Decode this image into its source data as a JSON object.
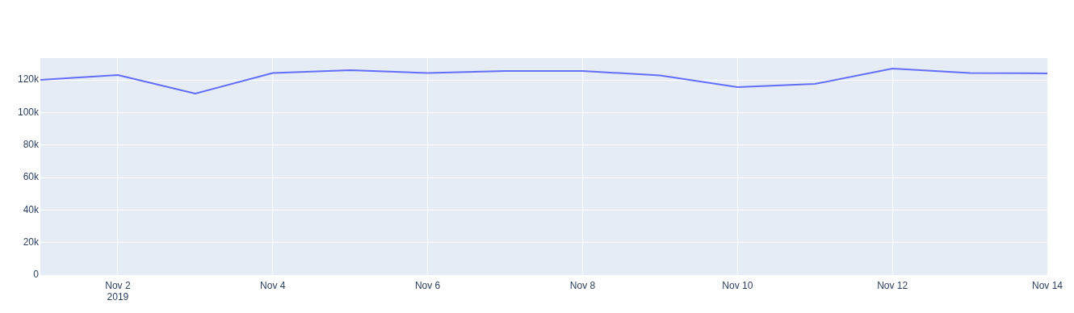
{
  "chart_data": {
    "type": "line",
    "x": [
      "2019-11-01",
      "2019-11-02",
      "2019-11-03",
      "2019-11-04",
      "2019-11-05",
      "2019-11-06",
      "2019-11-07",
      "2019-11-08",
      "2019-11-09",
      "2019-11-10",
      "2019-11-11",
      "2019-11-12",
      "2019-11-13",
      "2019-11-14"
    ],
    "series": [
      {
        "color": "#636efa",
        "values": [
          120000,
          123000,
          111600,
          124200,
          126000,
          124200,
          125500,
          125500,
          122700,
          115500,
          117500,
          127000,
          124200,
          124000
        ]
      }
    ],
    "xlim": [
      "2019-11-01",
      "2019-11-14"
    ],
    "xticks": [
      {
        "value": "2019-11-02",
        "label": "Nov 2\n2019"
      },
      {
        "value": "2019-11-04",
        "label": "Nov 4"
      },
      {
        "value": "2019-11-06",
        "label": "Nov 6"
      },
      {
        "value": "2019-11-08",
        "label": "Nov 8"
      },
      {
        "value": "2019-11-10",
        "label": "Nov 10"
      },
      {
        "value": "2019-11-12",
        "label": "Nov 12"
      },
      {
        "value": "2019-11-14",
        "label": "Nov 14"
      }
    ],
    "ylim": [
      0,
      133400
    ],
    "yticks": [
      {
        "value": 0,
        "label": "0"
      },
      {
        "value": 20000,
        "label": "20k"
      },
      {
        "value": 40000,
        "label": "40k"
      },
      {
        "value": 60000,
        "label": "60k"
      },
      {
        "value": 80000,
        "label": "80k"
      },
      {
        "value": 100000,
        "label": "100k"
      },
      {
        "value": 120000,
        "label": "120k"
      }
    ],
    "grid": true,
    "legend": false,
    "marker": "none",
    "line_style": "solid"
  }
}
